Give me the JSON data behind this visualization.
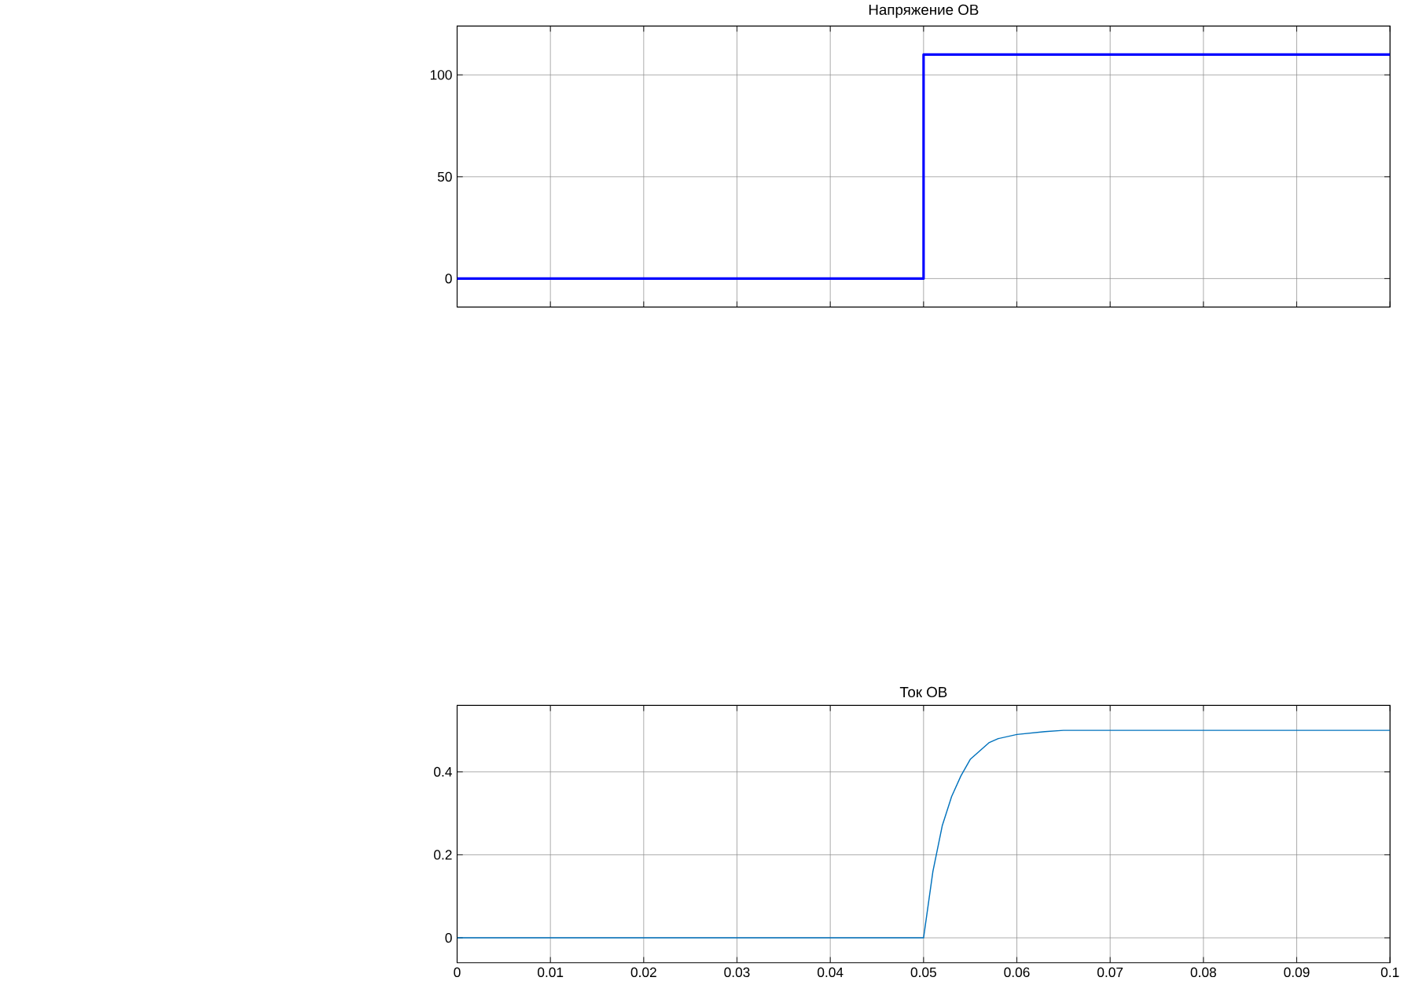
{
  "chart_data": [
    {
      "type": "line",
      "title": "Напряжение ОВ",
      "xlim": [
        0,
        0.1
      ],
      "xticks": [
        0,
        0.01,
        0.02,
        0.03,
        0.04,
        0.05,
        0.06,
        0.07,
        0.08,
        0.09,
        0.1
      ],
      "ylim": [
        -14,
        124
      ],
      "yticks": [
        0,
        50,
        100
      ],
      "grid": true,
      "tick_labels": "y",
      "series": [
        {
          "color": "#0000ff",
          "x": [
            0,
            0.05,
            0.05,
            0.1
          ],
          "values": [
            0,
            0,
            110,
            110
          ]
        }
      ]
    },
    {
      "type": "line",
      "title": "Ток ОВ",
      "xlim": [
        0,
        0.1
      ],
      "xticks": [
        0,
        0.01,
        0.02,
        0.03,
        0.04,
        0.05,
        0.06,
        0.07,
        0.08,
        0.09,
        0.1
      ],
      "ylim": [
        -0.06,
        0.56
      ],
      "yticks": [
        0,
        0.2,
        0.4
      ],
      "grid": true,
      "series": [
        {
          "color": "#0072bd",
          "x": [
            0,
            0.05,
            0.051,
            0.052,
            0.053,
            0.054,
            0.055,
            0.056,
            0.057,
            0.058,
            0.06,
            0.063,
            0.065,
            0.1
          ],
          "values": [
            0,
            0,
            0.16,
            0.27,
            0.34,
            0.39,
            0.43,
            0.45,
            0.47,
            0.48,
            0.49,
            0.497,
            0.5,
            0.5
          ]
        }
      ]
    }
  ]
}
